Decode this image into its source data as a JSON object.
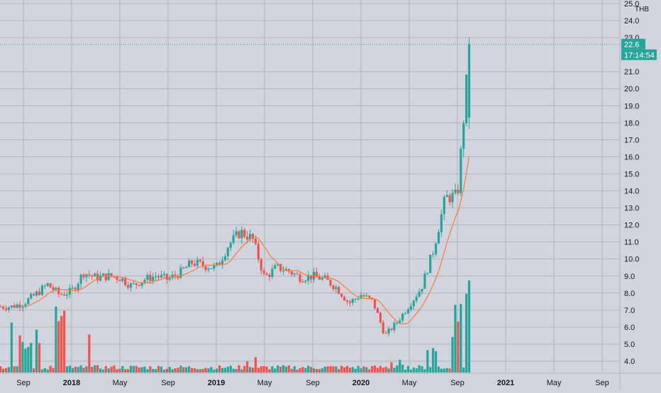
{
  "colors": {
    "background": "#d1d4dc",
    "grid": "#b2b5be",
    "up": "#26a69a",
    "down": "#ef5350",
    "ma_line": "#f57c3e",
    "price_line": "#26a69a",
    "axis_text": "#131722",
    "badge_text": "#ffffff"
  },
  "price_axis": {
    "currency": "THB",
    "ticks": [
      "25.0",
      "24.0",
      "23.0",
      "21.0",
      "20.0",
      "19.0",
      "18.0",
      "17.0",
      "16.0",
      "15.0",
      "14.0",
      "13.0",
      "12.0",
      "11.0",
      "10.0",
      "9.0",
      "8.0",
      "7.0",
      "6.0",
      "5.0",
      "4.0"
    ],
    "last_price_label": "22.6",
    "countdown_label": "17:14:54"
  },
  "time_axis": {
    "ticks": [
      {
        "label": "Sep",
        "year": false
      },
      {
        "label": "2018",
        "year": true
      },
      {
        "label": "May",
        "year": false
      },
      {
        "label": "Sep",
        "year": false
      },
      {
        "label": "2019",
        "year": true
      },
      {
        "label": "May",
        "year": false
      },
      {
        "label": "Sep",
        "year": false
      },
      {
        "label": "2020",
        "year": true
      },
      {
        "label": "May",
        "year": false
      },
      {
        "label": "Sep",
        "year": false
      },
      {
        "label": "2021",
        "year": true
      },
      {
        "label": "May",
        "year": false
      },
      {
        "label": "Sep",
        "year": false
      }
    ]
  },
  "chart_data": {
    "type": "candlestick",
    "interval": "weekly (approx.)",
    "ylim": [
      3.6,
      25.0
    ],
    "last_price": 22.6,
    "x_start": "2017-08",
    "x_end": "2021-09",
    "price_keypoints": [
      [
        "2017-08",
        7.2
      ],
      [
        "2017-09",
        7.4
      ],
      [
        "2017-10",
        7.9
      ],
      [
        "2017-11",
        8.5
      ],
      [
        "2017-12",
        7.9
      ],
      [
        "2018-01",
        8.1
      ],
      [
        "2018-02",
        9.2
      ],
      [
        "2018-03",
        8.9
      ],
      [
        "2018-04",
        9.0
      ],
      [
        "2018-05",
        8.9
      ],
      [
        "2018-06",
        8.4
      ],
      [
        "2018-07",
        8.8
      ],
      [
        "2018-08",
        9.0
      ],
      [
        "2018-09",
        8.8
      ],
      [
        "2018-10",
        9.2
      ],
      [
        "2018-11",
        9.8
      ],
      [
        "2018-12",
        9.6
      ],
      [
        "2019-01",
        9.5
      ],
      [
        "2019-02",
        10.8
      ],
      [
        "2019-03",
        11.6
      ],
      [
        "2019-04",
        11.2
      ],
      [
        "2019-05",
        8.9
      ],
      [
        "2019-06",
        9.5
      ],
      [
        "2019-07",
        9.3
      ],
      [
        "2019-08",
        8.9
      ],
      [
        "2019-09",
        9.0
      ],
      [
        "2019-10",
        8.8
      ],
      [
        "2019-11",
        8.3
      ],
      [
        "2019-12",
        7.4
      ],
      [
        "2020-01",
        7.9
      ],
      [
        "2020-02",
        7.5
      ],
      [
        "2020-03",
        5.5
      ],
      [
        "2020-04",
        6.3
      ],
      [
        "2020-05",
        7.3
      ],
      [
        "2020-06",
        8.3
      ],
      [
        "2020-07",
        10.5
      ],
      [
        "2020-08",
        13.6
      ],
      [
        "2020-09",
        13.7
      ],
      [
        "2020-10",
        22.6
      ]
    ],
    "volume": {
      "note": "relative volume bars, 0 to 1",
      "spikes": [
        {
          "date": "2017-08",
          "value": 0.6
        },
        {
          "date": "2017-09",
          "value": 0.45
        },
        {
          "date": "2017-10",
          "value": 0.55
        },
        {
          "date": "2017-11",
          "value": 0.25
        },
        {
          "date": "2017-12",
          "value": 0.75
        },
        {
          "date": "2018-02",
          "value": 0.75
        },
        {
          "date": "2019-04",
          "value": 0.22
        },
        {
          "date": "2020-04",
          "value": 0.15
        },
        {
          "date": "2020-07",
          "value": 0.3
        },
        {
          "date": "2020-09",
          "value": 0.75
        },
        {
          "date": "2020-10",
          "value": 1.0
        }
      ]
    }
  }
}
